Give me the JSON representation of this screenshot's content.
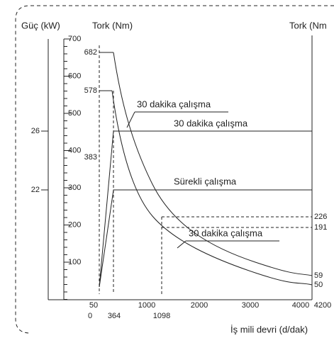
{
  "axes": {
    "power_title": "Güç (kW)",
    "torque_title": "Tork (Nm)",
    "torque_right_title": "Tork (Nm",
    "x_title": "İş mili devri (d/dak)"
  },
  "power_ticks": [
    "26",
    "22"
  ],
  "torque_ticks": [
    "700",
    "600",
    "500",
    "400",
    "300",
    "200",
    "100"
  ],
  "torque_marks": [
    "682",
    "578",
    "383"
  ],
  "right_ticks": [
    "226",
    "191",
    "59",
    "50"
  ],
  "x_ticks": [
    "50",
    "1000",
    "2000",
    "3000",
    "4000",
    "4200"
  ],
  "x_marks": [
    "0",
    "364",
    "1098"
  ],
  "labels": [
    "30 dakika çalışma",
    "30 dakika çalışma",
    "Sürekli çalışma",
    "30 dakika çalışma"
  ]
}
